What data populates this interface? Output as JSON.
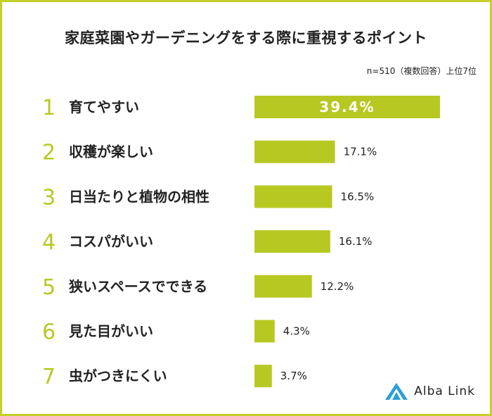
{
  "header": {
    "title": "家庭菜園やガーデニングをする際に重視するポイント",
    "subtitle": "n=510（複数回答）上位7位"
  },
  "colors": {
    "bar": "#b8c823",
    "rank": "#b8c823",
    "border": "#c4cf27",
    "text": "#222222",
    "logo": "#2a9fd8"
  },
  "chart_data": {
    "type": "bar",
    "orientation": "horizontal",
    "title": "家庭菜園やガーデニングをする際に重視するポイント",
    "subtitle": "n=510（複数回答）上位7位",
    "unit": "%",
    "xlim": [
      0,
      40
    ],
    "ranks": [
      "1",
      "2",
      "3",
      "4",
      "5",
      "6",
      "7"
    ],
    "categories": [
      "育てやすい",
      "収穫が楽しい",
      "日当たりと植物の相性",
      "コスパがいい",
      "狭いスペースでできる",
      "見た目がいい",
      "虫がつきにくい"
    ],
    "values": [
      39.4,
      17.1,
      16.5,
      16.1,
      12.2,
      4.3,
      3.7
    ],
    "value_labels": [
      "39.4%",
      "17.1%",
      "16.5%",
      "16.1%",
      "12.2%",
      "4.3%",
      "3.7%"
    ]
  },
  "logo": {
    "icon": "alba-link-triangle-icon",
    "text": "Alba Link"
  }
}
